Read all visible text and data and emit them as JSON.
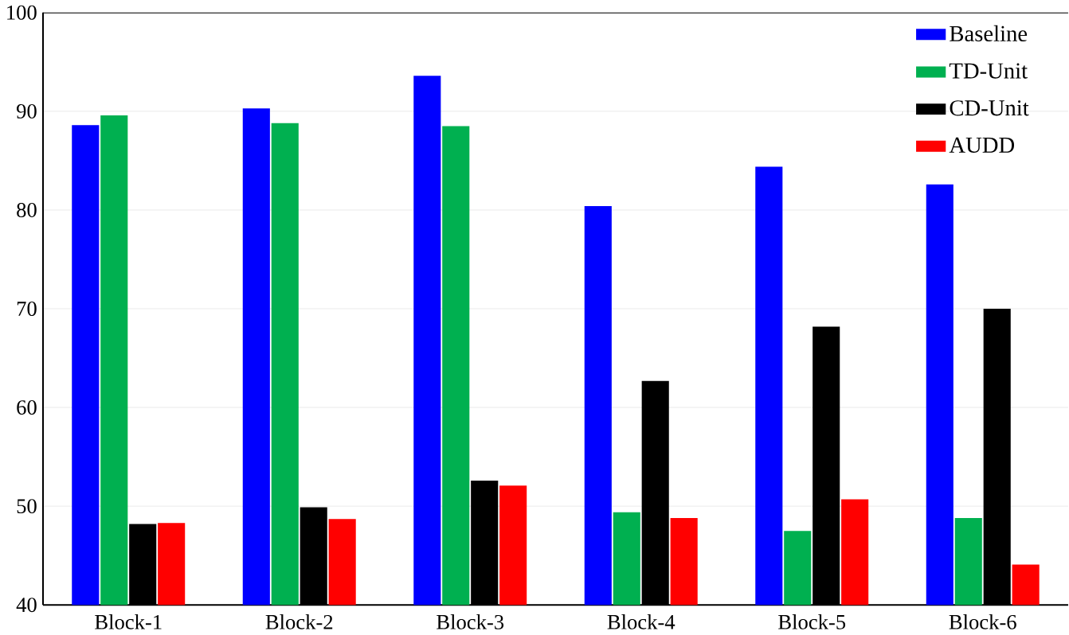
{
  "chart_data": {
    "type": "bar",
    "categories": [
      "Block-1",
      "Block-2",
      "Block-3",
      "Block-4",
      "Block-5",
      "Block-6"
    ],
    "series": [
      {
        "name": "Baseline",
        "color": "#0000ff",
        "values": [
          88.5,
          90.2,
          93.5,
          80.3,
          84.3,
          82.5
        ]
      },
      {
        "name": "TD-Unit",
        "color": "#00b050",
        "values": [
          89.5,
          88.7,
          88.4,
          49.3,
          47.4,
          48.7
        ]
      },
      {
        "name": "CD-Unit",
        "color": "#000000",
        "values": [
          48.1,
          49.8,
          52.5,
          62.6,
          68.1,
          69.9
        ]
      },
      {
        "name": "AUDD",
        "color": "#ff0000",
        "values": [
          48.2,
          48.6,
          52.0,
          48.7,
          50.6,
          44.0
        ]
      }
    ],
    "ylim": [
      40,
      100
    ],
    "yticks": [
      40,
      50,
      60,
      70,
      80,
      90,
      100
    ],
    "grid": "y",
    "legend": "top right"
  }
}
